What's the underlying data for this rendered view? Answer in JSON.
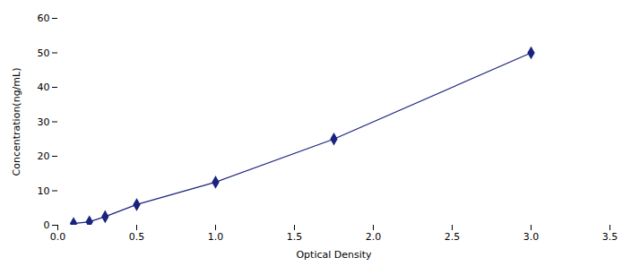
{
  "chart_data": {
    "type": "line",
    "xlabel": "Optical Density",
    "ylabel": "Concentration(ng/mL)",
    "x": [
      0.1,
      0.2,
      0.3,
      0.5,
      1.0,
      1.75,
      3.0
    ],
    "values": [
      0.5,
      1.0,
      2.5,
      6.0,
      12.5,
      25.0,
      50.0
    ],
    "color": "#1a237e",
    "marker": "diamond",
    "line_style": "solid",
    "xlim": [
      0,
      3.5
    ],
    "ylim": [
      0,
      60
    ],
    "xticks": [
      0,
      0.5,
      1,
      1.5,
      2,
      2.5,
      3,
      3.5
    ],
    "yticks": [
      0,
      10,
      20,
      30,
      40,
      50,
      60
    ],
    "grid": false
  }
}
